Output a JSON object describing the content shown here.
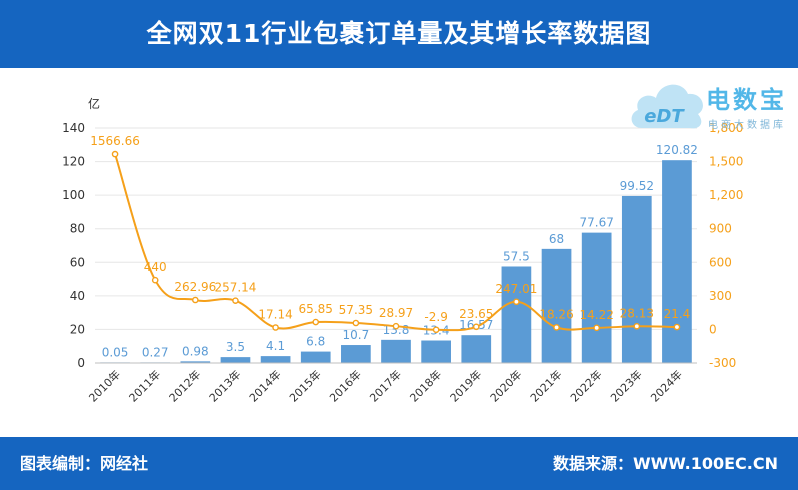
{
  "header": {
    "title": "全网双11行业包裹订单量及其增长率数据图"
  },
  "footer": {
    "left": "图表编制：网经社",
    "right": "数据来源：WWW.100EC.CN"
  },
  "logo": {
    "brand": "电数宝",
    "sub": "电商大数据库",
    "mark": "eDT"
  },
  "chart_data": {
    "type": "bar",
    "categories": [
      "2010年",
      "2011年",
      "2012年",
      "2013年",
      "2014年",
      "2015年",
      "2016年",
      "2017年",
      "2018年",
      "2019年",
      "2020年",
      "2021年",
      "2022年",
      "2023年",
      "2024年"
    ],
    "series": [
      {
        "axis": "left",
        "type": "bar",
        "color": "#5b9bd5",
        "values": [
          0.05,
          0.27,
          0.98,
          3.5,
          4.1,
          6.8,
          10.7,
          13.8,
          13.4,
          16.57,
          57.5,
          68,
          77.67,
          99.52,
          120.82
        ],
        "labels": [
          "0.05",
          "0.27",
          "0.98",
          "3.5",
          "4.1",
          "6.8",
          "10.7",
          "13.8",
          "13.4",
          "16.57",
          "57.5",
          "68",
          "77.67",
          "99.52",
          "120.82"
        ]
      },
      {
        "axis": "right",
        "type": "line",
        "color": "#f5a01a",
        "values": [
          1566.66,
          440,
          262.96,
          257.14,
          17.14,
          65.85,
          57.35,
          28.97,
          -2.9,
          23.65,
          247.01,
          18.26,
          14.22,
          28.13,
          21.4
        ],
        "labels": [
          "1566.66",
          "440",
          "262.96",
          "257.14",
          "17.14",
          "65.85",
          "57.35",
          "28.97",
          "-2.9",
          "23.65",
          "247.01",
          "18.26",
          "14.22",
          "28.13",
          "21.4"
        ]
      }
    ],
    "ylabel_left": "亿",
    "ylabel_right": "%",
    "ylim_left": [
      0,
      140
    ],
    "yticks_left": [
      "0",
      "20",
      "40",
      "60",
      "80",
      "100",
      "120",
      "140"
    ],
    "ylim_right": [
      -300,
      1800
    ],
    "yticks_right": [
      "-300",
      "0",
      "300",
      "600",
      "900",
      "1,200",
      "1,500",
      "1,800"
    ],
    "grid": true
  }
}
